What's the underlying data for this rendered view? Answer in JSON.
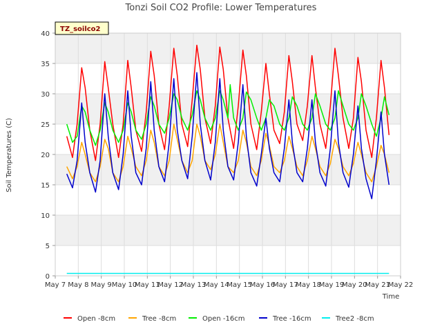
{
  "chart_data": {
    "type": "line",
    "title": "Tonzi Soil CO2 Profile: Lower Temperatures",
    "xlabel": "Time",
    "ylabel": "Soil Temperatures (C)",
    "badge": "TZ_soilco2",
    "xlim": [
      7,
      22
    ],
    "ylim": [
      0,
      40
    ],
    "x_ticks": [
      {
        "value": 7,
        "label": "May 7"
      },
      {
        "value": 8,
        "label": "May 8"
      },
      {
        "value": 9,
        "label": "May 9"
      },
      {
        "value": 10,
        "label": "May 10"
      },
      {
        "value": 11,
        "label": "May 11"
      },
      {
        "value": 12,
        "label": "May 12"
      },
      {
        "value": 13,
        "label": "May 13"
      },
      {
        "value": 14,
        "label": "May 14"
      },
      {
        "value": 15,
        "label": "May 15"
      },
      {
        "value": 16,
        "label": "May 16"
      },
      {
        "value": 17,
        "label": "May 17"
      },
      {
        "value": 18,
        "label": "May 18"
      },
      {
        "value": 19,
        "label": "May 19"
      },
      {
        "value": 20,
        "label": "May 20"
      },
      {
        "value": 21,
        "label": "May 21"
      },
      {
        "value": 22,
        "label": "May 22"
      }
    ],
    "y_ticks": [
      0,
      5,
      10,
      15,
      20,
      25,
      30,
      35,
      40
    ],
    "grid": true,
    "legend_position": "bottom",
    "series": [
      {
        "name": "Open -8cm",
        "color": "#ff0000",
        "x": [
          7.5,
          7.75,
          7.95,
          8.15,
          8.3,
          8.5,
          8.75,
          8.95,
          9.15,
          9.3,
          9.5,
          9.75,
          9.95,
          10.15,
          10.3,
          10.5,
          10.75,
          10.95,
          11.15,
          11.3,
          11.5,
          11.75,
          11.95,
          12.15,
          12.3,
          12.5,
          12.75,
          12.95,
          13.15,
          13.3,
          13.5,
          13.75,
          13.95,
          14.15,
          14.3,
          14.5,
          14.75,
          14.95,
          15.15,
          15.3,
          15.5,
          15.75,
          15.95,
          16.15,
          16.3,
          16.5,
          16.75,
          16.95,
          17.15,
          17.3,
          17.5,
          17.75,
          17.95,
          18.15,
          18.3,
          18.5,
          18.75,
          18.95,
          19.15,
          19.3,
          19.5,
          19.75,
          19.95,
          20.15,
          20.3,
          20.5,
          20.75,
          20.95,
          21.15,
          21.3,
          21.5
        ],
        "y": [
          23,
          19.5,
          25,
          34.3,
          31,
          24,
          19,
          25,
          35.3,
          31,
          25,
          19.5,
          25,
          35.5,
          31,
          24,
          20.5,
          27,
          37,
          33,
          25,
          20.8,
          28,
          37.5,
          33,
          25,
          21.3,
          29,
          38,
          34,
          26,
          21.8,
          28,
          37.7,
          34,
          26,
          21,
          28,
          37.2,
          33,
          25,
          20.8,
          27,
          35,
          30,
          24,
          21.8,
          27,
          36.3,
          32,
          25,
          22.3,
          28,
          36.3,
          31,
          25,
          21,
          28,
          37.5,
          33,
          26,
          21,
          26,
          36,
          32,
          24,
          19.5,
          26,
          35.5,
          31,
          23.2
        ]
      },
      {
        "name": "Tree -8cm",
        "color": "#ffa500",
        "x": [
          7.5,
          7.75,
          7.95,
          8.15,
          8.3,
          8.5,
          8.75,
          8.95,
          9.15,
          9.3,
          9.5,
          9.75,
          9.95,
          10.15,
          10.3,
          10.5,
          10.75,
          10.95,
          11.15,
          11.3,
          11.5,
          11.75,
          11.95,
          12.15,
          12.3,
          12.5,
          12.75,
          12.95,
          13.15,
          13.3,
          13.5,
          13.75,
          13.95,
          14.15,
          14.3,
          14.5,
          14.75,
          14.95,
          15.15,
          15.3,
          15.5,
          15.75,
          15.95,
          16.15,
          16.3,
          16.5,
          16.75,
          16.95,
          17.15,
          17.3,
          17.5,
          17.75,
          17.95,
          18.15,
          18.3,
          18.5,
          18.75,
          18.95,
          19.15,
          19.3,
          19.5,
          19.75,
          19.95,
          20.15,
          20.3,
          20.5,
          20.75,
          20.95,
          21.15,
          21.3,
          21.5
        ],
        "y": [
          18,
          16,
          18,
          22,
          20,
          17,
          15.5,
          18,
          22.5,
          21,
          17,
          15.5,
          18,
          23,
          21,
          18,
          16.5,
          19,
          24,
          22,
          18,
          16.5,
          19,
          25,
          22.5,
          19,
          17,
          19,
          25,
          23,
          19,
          17.5,
          20,
          25,
          22,
          18,
          17,
          19,
          24,
          22,
          18,
          16.5,
          19,
          23.5,
          21.5,
          18,
          17,
          19,
          23,
          21,
          18,
          16.5,
          19,
          23,
          21,
          18,
          16.5,
          18.5,
          22.5,
          21,
          18,
          16.5,
          18.5,
          22,
          20,
          17,
          15.5,
          18,
          21.5,
          20,
          17
        ]
      },
      {
        "name": "Open -16cm",
        "color": "#00ee00",
        "x": [
          7.5,
          7.75,
          7.95,
          8.15,
          8.3,
          8.5,
          8.75,
          8.95,
          9.15,
          9.3,
          9.5,
          9.75,
          9.95,
          10.15,
          10.3,
          10.5,
          10.75,
          10.95,
          11.15,
          11.3,
          11.5,
          11.75,
          11.95,
          12.15,
          12.3,
          12.5,
          12.75,
          12.95,
          13.15,
          13.3,
          13.5,
          13.75,
          13.95,
          14.15,
          14.3,
          14.5,
          14.6,
          14.75,
          14.95,
          15.15,
          15.3,
          15.5,
          15.75,
          15.95,
          16.15,
          16.3,
          16.5,
          16.75,
          16.95,
          17.15,
          17.3,
          17.5,
          17.75,
          17.95,
          18.15,
          18.3,
          18.5,
          18.75,
          18.95,
          19.15,
          19.3,
          19.5,
          19.75,
          19.95,
          20.15,
          20.3,
          20.5,
          20.75,
          20.95,
          21.15,
          21.3,
          21.5
        ],
        "y": [
          25,
          22,
          23,
          28,
          27,
          24,
          21.5,
          24,
          28.5,
          27,
          24,
          22,
          24,
          28.5,
          27,
          24,
          22.5,
          25,
          29.5,
          28,
          25,
          23.5,
          26,
          30,
          29,
          26,
          24,
          26.5,
          30.5,
          29,
          26,
          24,
          26,
          30.5,
          29,
          26,
          31.5,
          26,
          24,
          26,
          30.3,
          29,
          26,
          24,
          26,
          29,
          28,
          25,
          24,
          26,
          29.5,
          28,
          25,
          24,
          26,
          30,
          28,
          25,
          24,
          26,
          30.5,
          28,
          25,
          24,
          26,
          30,
          28,
          25,
          23,
          26,
          29.5,
          26.5
        ]
      },
      {
        "name": "Tree -16cm",
        "color": "#0000cc",
        "x": [
          7.5,
          7.75,
          7.95,
          8.15,
          8.3,
          8.5,
          8.75,
          8.95,
          9.15,
          9.3,
          9.5,
          9.75,
          9.95,
          10.15,
          10.3,
          10.5,
          10.75,
          10.95,
          11.15,
          11.3,
          11.5,
          11.75,
          11.95,
          12.15,
          12.3,
          12.5,
          12.75,
          12.95,
          13.15,
          13.3,
          13.5,
          13.75,
          13.95,
          14.15,
          14.3,
          14.5,
          14.75,
          14.95,
          15.15,
          15.3,
          15.5,
          15.75,
          15.95,
          16.15,
          16.3,
          16.5,
          16.75,
          16.95,
          17.15,
          17.3,
          17.5,
          17.75,
          17.95,
          18.15,
          18.3,
          18.5,
          18.75,
          18.95,
          19.15,
          19.3,
          19.5,
          19.75,
          19.95,
          20.15,
          20.3,
          20.5,
          20.75,
          20.95,
          21.15,
          21.3,
          21.5
        ],
        "y": [
          16.8,
          14.5,
          19,
          28.5,
          22,
          17,
          13.8,
          19,
          30,
          23,
          17,
          14.2,
          20,
          30.5,
          23,
          17,
          15,
          21,
          32,
          24,
          18,
          15.5,
          22,
          32.5,
          24,
          19,
          16,
          23,
          33.5,
          25,
          19,
          15.8,
          22,
          32.5,
          24,
          18,
          15.8,
          22,
          31.5,
          23,
          17,
          14.8,
          20,
          26,
          21,
          17,
          15.5,
          21,
          29,
          22,
          17,
          15.5,
          21,
          29,
          22,
          17,
          14.8,
          21,
          30.5,
          22,
          17,
          14.6,
          20,
          28,
          21,
          16,
          12.7,
          19,
          27,
          20,
          15
        ]
      },
      {
        "name": "Tree2 -8cm",
        "color": "#00eeee",
        "x": [
          7.5,
          21.5
        ],
        "y": [
          0.4,
          0.4
        ]
      }
    ]
  }
}
